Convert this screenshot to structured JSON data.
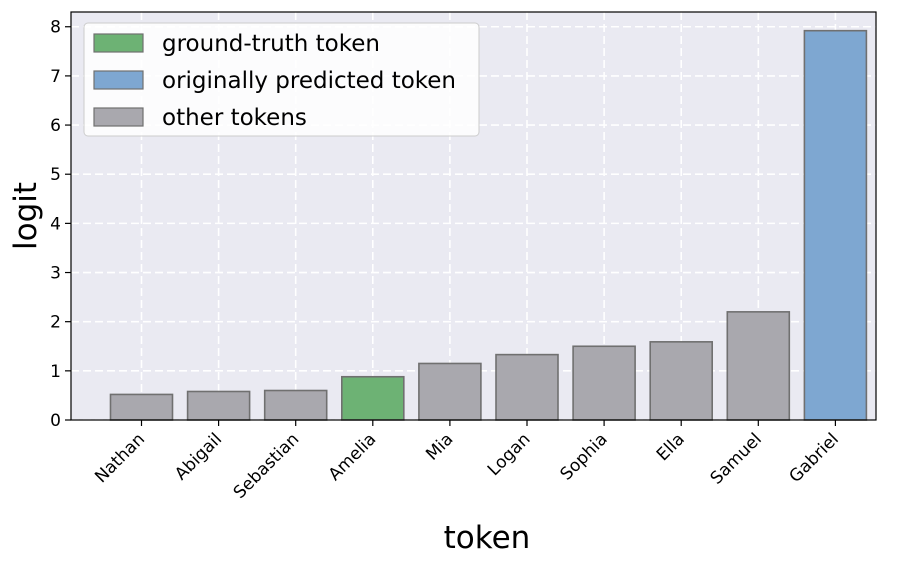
{
  "chart_data": {
    "type": "bar",
    "xlabel": "token",
    "ylabel": "logit",
    "ylim": [
      0,
      8.3
    ],
    "yticks": [
      "0",
      "1",
      "2",
      "3",
      "4",
      "5",
      "6",
      "7",
      "8"
    ],
    "grid": true,
    "legend_position": "top-left",
    "categories": [
      "Nathan",
      "Abigail",
      "Sebastian",
      "Amelia",
      "Mia",
      "Logan",
      "Sophia",
      "Ella",
      "Samuel",
      "Gabriel"
    ],
    "values": [
      0.52,
      0.58,
      0.6,
      0.88,
      1.15,
      1.33,
      1.5,
      1.59,
      2.2,
      7.92
    ],
    "bar_roles": [
      "other",
      "other",
      "other",
      "ground_truth",
      "other",
      "other",
      "other",
      "other",
      "other",
      "predicted"
    ],
    "legend": [
      {
        "role": "ground_truth",
        "label": "ground-truth token",
        "color": "#6db274"
      },
      {
        "role": "predicted",
        "label": "originally predicted token",
        "color": "#7ea7d1"
      },
      {
        "role": "other",
        "label": "other tokens",
        "color": "#a9a8ae"
      }
    ],
    "colors": {
      "background": "#eaeaf2",
      "grid": "#ffffff",
      "bar_edge": "#707070"
    }
  }
}
